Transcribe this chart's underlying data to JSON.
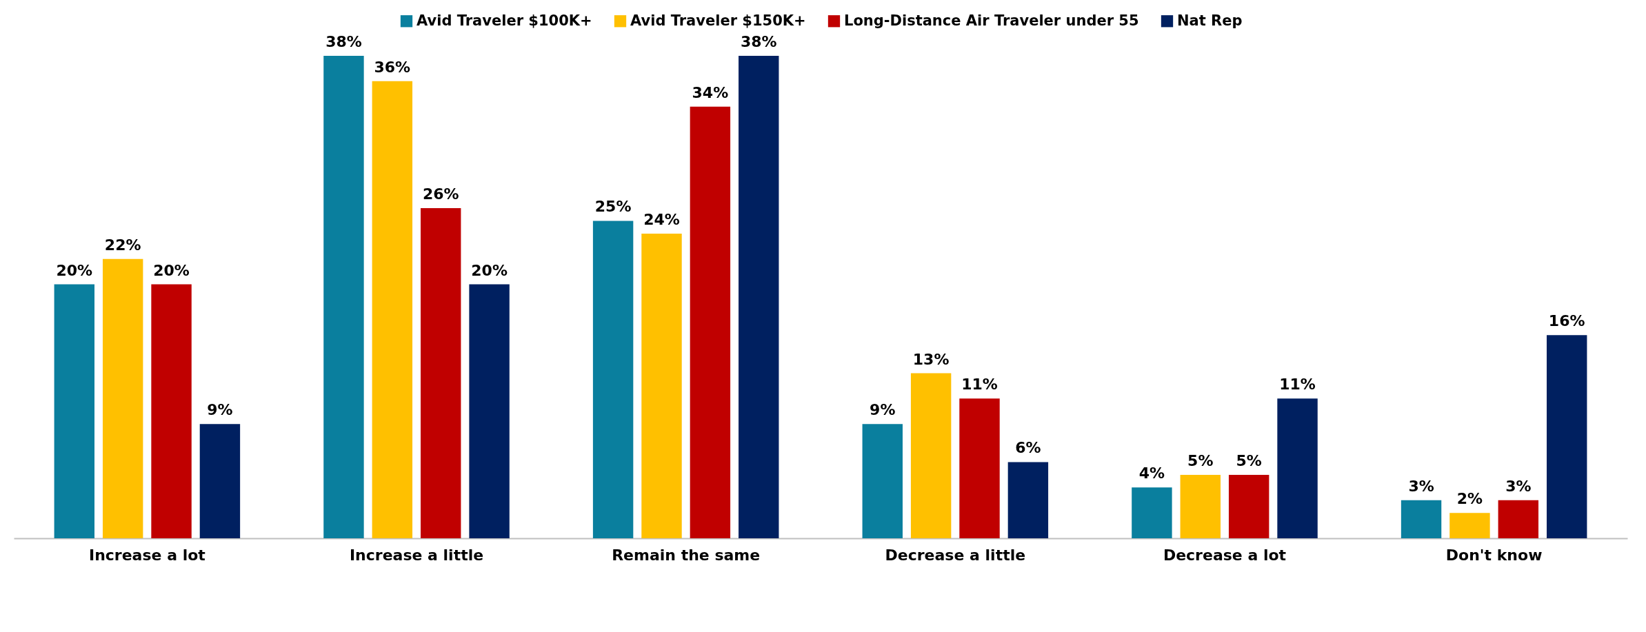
{
  "chart_data": {
    "type": "bar",
    "categories": [
      "Increase a lot",
      "Increase a little",
      "Remain the same",
      "Decrease a little",
      "Decrease a lot",
      "Don't know"
    ],
    "series": [
      {
        "name": "Avid Traveler $100K+",
        "color": "#0a7f9e",
        "values": [
          20,
          38,
          25,
          9,
          4,
          3
        ],
        "value_labels": [
          "20%",
          "38%",
          "25%",
          "9%",
          "4%",
          "3%"
        ]
      },
      {
        "name": "Avid Traveler $150K+",
        "color": "#ffc000",
        "values": [
          22,
          36,
          24,
          13,
          5,
          2
        ],
        "value_labels": [
          "22%",
          "36%",
          "24%",
          "13%",
          "5%",
          "2%"
        ]
      },
      {
        "name": "Long-Distance Air Traveler under 55",
        "color": "#c00000",
        "values": [
          20,
          26,
          34,
          11,
          5,
          3
        ],
        "value_labels": [
          "20%",
          "26%",
          "34%",
          "11%",
          "5%",
          "3%"
        ]
      },
      {
        "name": "Nat Rep",
        "color": "#002060",
        "values": [
          9,
          20,
          38,
          6,
          11,
          16
        ],
        "value_labels": [
          "9%",
          "20%",
          "38%",
          "6%",
          "11%",
          "16%"
        ]
      }
    ],
    "legend": "top"
  }
}
